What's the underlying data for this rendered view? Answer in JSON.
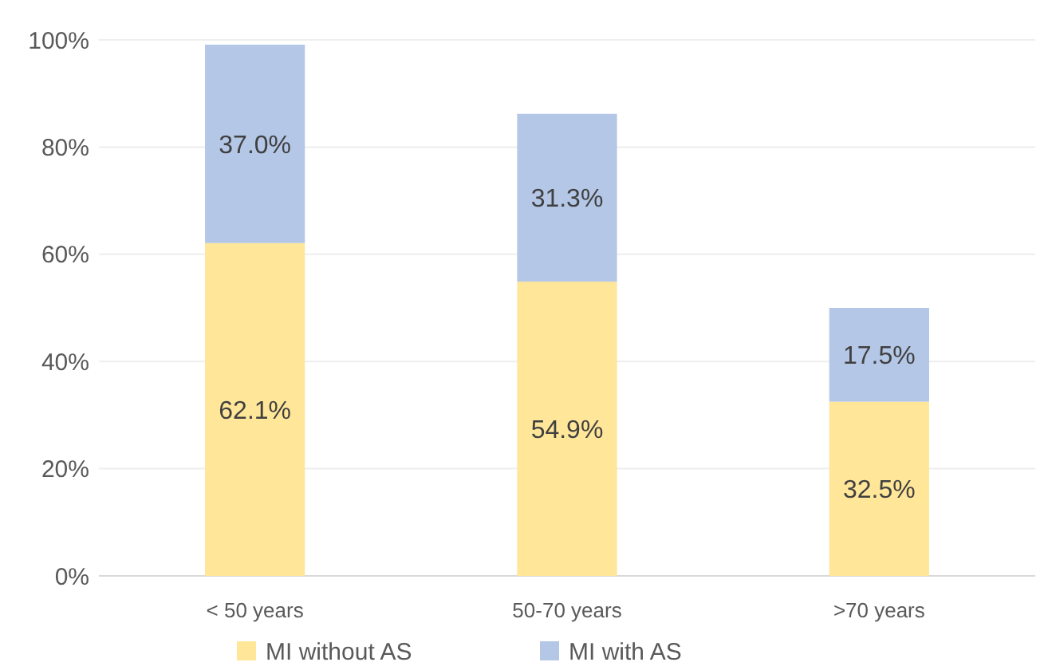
{
  "chart_data": {
    "type": "bar",
    "stacked": true,
    "categories": [
      "< 50 years",
      "50-70 years",
      ">70 years"
    ],
    "series": [
      {
        "name": "MI without AS",
        "color": "#ffe699",
        "values": [
          62.1,
          54.9,
          32.5
        ],
        "value_labels": [
          "62.1%",
          "54.9%",
          "32.5%"
        ]
      },
      {
        "name": "MI with AS",
        "color": "#b4c7e7",
        "values": [
          37.0,
          31.3,
          17.5
        ],
        "value_labels": [
          "37.0%",
          "31.3%",
          "17.5%"
        ]
      }
    ],
    "ylim": [
      0,
      100
    ],
    "yticks": [
      {
        "value": 0,
        "label": "0%"
      },
      {
        "value": 20,
        "label": "20%"
      },
      {
        "value": 40,
        "label": "40%"
      },
      {
        "value": 60,
        "label": "60%"
      },
      {
        "value": 80,
        "label": "80%"
      },
      {
        "value": 100,
        "label": "100%"
      }
    ],
    "grid": "y",
    "legend": "bottom"
  }
}
